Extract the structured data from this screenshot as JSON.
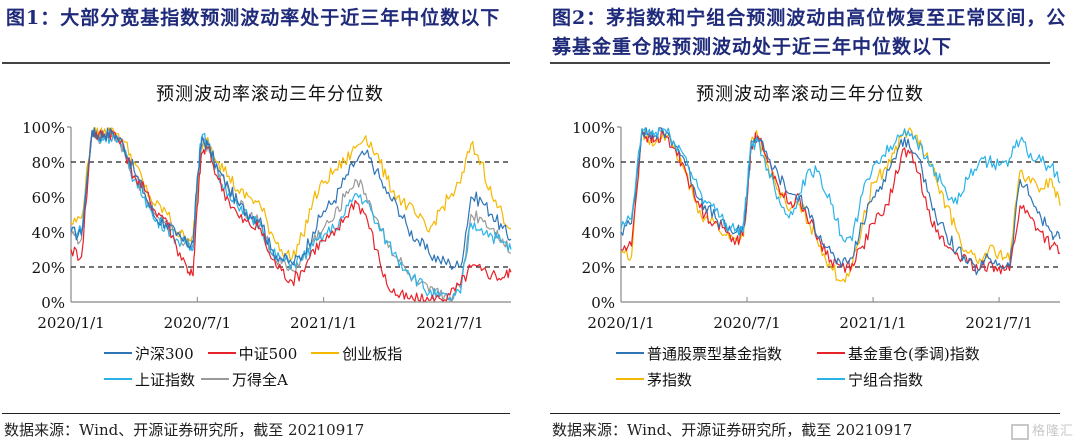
{
  "figures": [
    {
      "title": "图1：大部分宽基指数预测波动率处于近三年中位数以下",
      "source": "数据来源：Wind、开源证券研究所，截至 20210917"
    },
    {
      "title": "图2：茅指数和宁组合预测波动由高位恢复至正常区间，公募基金重仓股预测波动处于近三年中位数以下",
      "source": "数据来源：Wind、开源证券研究所，截至 20210917"
    }
  ],
  "watermark": "格隆汇",
  "chart_data": [
    {
      "type": "line",
      "title": "预测波动率滚动三年分位数",
      "xlabel": "",
      "ylabel": "",
      "x_ticks": [
        "2020/1/1",
        "2020/7/1",
        "2021/1/1",
        "2021/7/1"
      ],
      "y_ticks": [
        "0%",
        "20%",
        "40%",
        "60%",
        "80%",
        "100%"
      ],
      "ylim": [
        0,
        100
      ],
      "xlim_months": [
        0,
        20.9
      ],
      "reference_lines": [
        20,
        80
      ],
      "legend_position": "bottom",
      "x_months": [
        0,
        0.5,
        1,
        1.3,
        1.6,
        2.0,
        2.5,
        3.0,
        3.5,
        4.0,
        4.5,
        5.0,
        5.5,
        5.8,
        6.0,
        6.2,
        6.5,
        7.0,
        7.5,
        8.0,
        8.5,
        9.0,
        9.5,
        10.0,
        10.5,
        11.0,
        11.5,
        12.0,
        12.5,
        13.0,
        13.5,
        14.0,
        14.5,
        15.0,
        15.5,
        16.0,
        16.5,
        17.0,
        17.5,
        18.0,
        18.5,
        19.0,
        19.5,
        20.0,
        20.5,
        20.9
      ],
      "series": [
        {
          "name": "沪深300",
          "color": "#2e75b6",
          "values": [
            40,
            38,
            98,
            95,
            96,
            97,
            90,
            75,
            62,
            48,
            45,
            38,
            33,
            34,
            70,
            92,
            90,
            75,
            65,
            55,
            50,
            48,
            30,
            25,
            22,
            27,
            40,
            52,
            58,
            70,
            80,
            85,
            75,
            62,
            55,
            42,
            35,
            28,
            24,
            22,
            20,
            60,
            58,
            50,
            42,
            36
          ]
        },
        {
          "name": "中证500",
          "color": "#e8222a",
          "values": [
            30,
            26,
            98,
            95,
            96,
            97,
            88,
            72,
            64,
            52,
            48,
            32,
            20,
            15,
            55,
            85,
            88,
            70,
            58,
            48,
            44,
            42,
            25,
            18,
            12,
            18,
            30,
            35,
            38,
            48,
            58,
            50,
            30,
            10,
            4,
            2,
            1,
            1,
            2,
            4,
            10,
            20,
            18,
            16,
            14,
            17
          ]
        },
        {
          "name": "创业板指",
          "color": "#f5b800",
          "values": [
            45,
            48,
            98,
            96,
            99,
            99,
            92,
            80,
            66,
            55,
            52,
            40,
            36,
            38,
            60,
            90,
            94,
            80,
            72,
            62,
            60,
            55,
            40,
            30,
            25,
            38,
            58,
            68,
            75,
            80,
            88,
            95,
            85,
            70,
            60,
            55,
            48,
            40,
            52,
            60,
            68,
            90,
            80,
            60,
            50,
            42
          ]
        },
        {
          "name": "上证指数",
          "color": "#2bb3e8",
          "values": [
            42,
            40,
            97,
            92,
            94,
            95,
            86,
            70,
            60,
            46,
            44,
            36,
            32,
            30,
            72,
            94,
            92,
            72,
            62,
            52,
            48,
            45,
            28,
            24,
            22,
            25,
            32,
            38,
            42,
            50,
            62,
            58,
            45,
            35,
            25,
            18,
            12,
            5,
            3,
            2,
            5,
            45,
            42,
            38,
            34,
            30
          ]
        },
        {
          "name": "万得全A",
          "color": "#999999",
          "values": [
            38,
            36,
            97,
            94,
            95,
            96,
            88,
            72,
            62,
            50,
            46,
            38,
            34,
            33,
            68,
            90,
            90,
            74,
            63,
            55,
            50,
            46,
            28,
            22,
            18,
            24,
            35,
            42,
            48,
            60,
            70,
            62,
            48,
            35,
            25,
            16,
            10,
            6,
            4,
            3,
            8,
            50,
            48,
            42,
            36,
            28
          ]
        }
      ]
    },
    {
      "type": "line",
      "title": "预测波动率滚动三年分位数",
      "xlabel": "",
      "ylabel": "",
      "x_ticks": [
        "2020/1/1",
        "2020/7/1",
        "2021/1/1",
        "2021/7/1"
      ],
      "y_ticks": [
        "0%",
        "20%",
        "40%",
        "60%",
        "80%",
        "100%"
      ],
      "ylim": [
        0,
        100
      ],
      "xlim_months": [
        0,
        20.9
      ],
      "reference_lines": [
        20,
        80
      ],
      "legend_position": "bottom",
      "x_months": [
        0,
        0.5,
        1,
        1.3,
        1.6,
        2.0,
        2.5,
        3.0,
        3.5,
        4.0,
        4.5,
        5.0,
        5.5,
        5.8,
        6.0,
        6.2,
        6.5,
        7.0,
        7.5,
        8.0,
        8.5,
        9.0,
        9.5,
        10.0,
        10.5,
        11.0,
        11.5,
        12.0,
        12.5,
        13.0,
        13.5,
        14.0,
        14.5,
        15.0,
        15.5,
        16.0,
        16.5,
        17.0,
        17.5,
        18.0,
        18.5,
        19.0,
        19.5,
        20.0,
        20.5,
        20.9
      ],
      "series": [
        {
          "name": "普通股票型基金指数",
          "color": "#2e75b6",
          "values": [
            40,
            45,
            99,
            96,
            95,
            98,
            92,
            82,
            65,
            55,
            48,
            42,
            40,
            40,
            60,
            92,
            94,
            82,
            72,
            62,
            60,
            48,
            38,
            28,
            20,
            25,
            45,
            60,
            70,
            82,
            94,
            85,
            70,
            48,
            38,
            30,
            22,
            18,
            25,
            22,
            20,
            70,
            60,
            48,
            40,
            36
          ]
        },
        {
          "name": "基金重仓(季调)指数",
          "color": "#e8222a",
          "values": [
            30,
            32,
            98,
            94,
            92,
            96,
            88,
            78,
            60,
            50,
            46,
            40,
            36,
            38,
            58,
            90,
            95,
            80,
            66,
            56,
            60,
            45,
            34,
            24,
            20,
            22,
            32,
            45,
            50,
            68,
            88,
            80,
            60,
            40,
            32,
            28,
            22,
            18,
            22,
            20,
            18,
            55,
            48,
            40,
            32,
            28
          ]
        },
        {
          "name": "茅指数",
          "color": "#f5b800",
          "values": [
            28,
            26,
            99,
            92,
            90,
            97,
            88,
            76,
            58,
            48,
            45,
            38,
            35,
            38,
            56,
            92,
            95,
            78,
            64,
            52,
            56,
            44,
            32,
            20,
            12,
            20,
            45,
            68,
            75,
            85,
            98,
            95,
            84,
            70,
            55,
            40,
            28,
            22,
            30,
            28,
            24,
            75,
            68,
            65,
            70,
            55
          ]
        },
        {
          "name": "宁组合指数",
          "color": "#2bb3e8",
          "values": [
            42,
            48,
            99,
            97,
            96,
            99,
            92,
            84,
            70,
            58,
            52,
            45,
            42,
            40,
            65,
            90,
            92,
            76,
            60,
            48,
            62,
            76,
            72,
            56,
            38,
            35,
            62,
            78,
            84,
            90,
            99,
            95,
            82,
            74,
            62,
            56,
            70,
            78,
            80,
            78,
            82,
            92,
            85,
            80,
            78,
            68
          ]
        }
      ]
    }
  ]
}
